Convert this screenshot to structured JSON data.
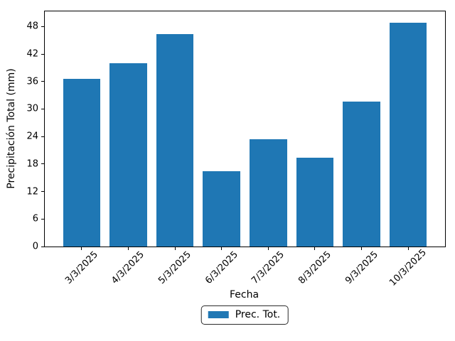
{
  "chart_data": {
    "type": "bar",
    "title": "",
    "xlabel": "Fecha",
    "ylabel": "Precipitación Total (mm)",
    "categories": [
      "3/3/2025",
      "4/3/2025",
      "5/3/2025",
      "6/3/2025",
      "7/3/2025",
      "8/3/2025",
      "9/3/2025",
      "10/3/2025"
    ],
    "series": [
      {
        "name": "Prec. Tot.",
        "values": [
          36.6,
          40.0,
          46.4,
          16.5,
          23.4,
          19.4,
          31.6,
          48.8
        ]
      }
    ],
    "yticks": [
      0,
      6,
      12,
      18,
      24,
      30,
      36,
      42,
      48
    ],
    "ylim": [
      0,
      51.3
    ],
    "bar_color": "#1f77b4",
    "grid": false,
    "x_tick_rotation_deg": 45,
    "legend": {
      "position": "lower center, below x-axis label",
      "border_color": "#2b2b2b"
    }
  }
}
